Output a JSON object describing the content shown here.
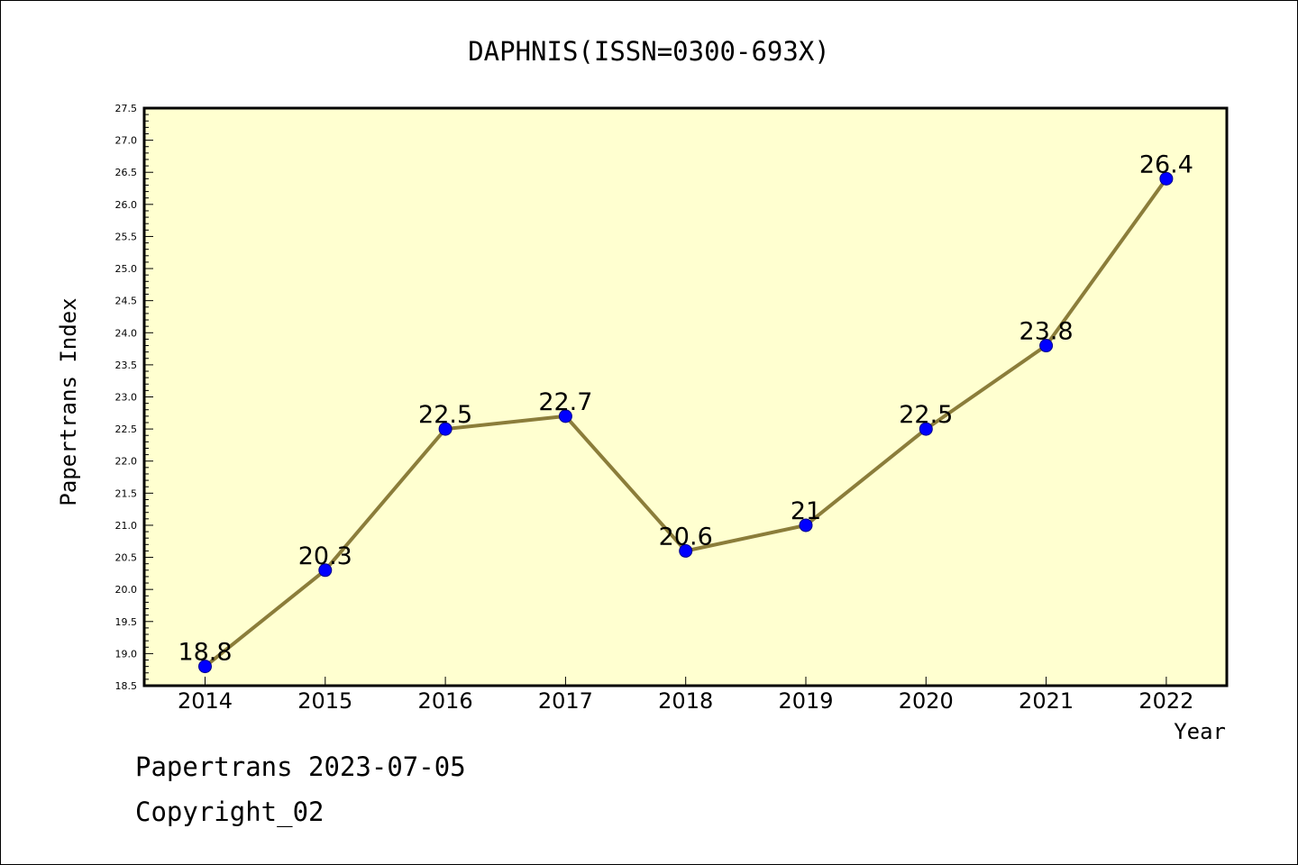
{
  "footer": {
    "line1": "Papertrans 2023-07-05",
    "line2": "Copyright_02"
  },
  "colors": {
    "plot_background": "#ffffd0",
    "line": "#8b7d3a",
    "marker": "#0000ff",
    "text": "#000000"
  },
  "chart_data": {
    "type": "line",
    "title": "DAPHNIS(ISSN=0300-693X)",
    "xlabel": "Year",
    "ylabel": "Papertrans Index",
    "categories": [
      "2014",
      "2015",
      "2016",
      "2017",
      "2018",
      "2019",
      "2020",
      "2021",
      "2022"
    ],
    "values": [
      18.8,
      20.3,
      22.5,
      22.7,
      20.6,
      21,
      22.5,
      23.8,
      26.4
    ],
    "data_labels": [
      "18.8",
      "20.3",
      "22.5",
      "22.7",
      "20.6",
      "21",
      "22.5",
      "23.8",
      "26.4"
    ],
    "ylim": [
      18.5,
      27.5
    ],
    "yticks": [
      "18.5",
      "19.0",
      "19.5",
      "20.0",
      "20.5",
      "21.0",
      "21.5",
      "22.0",
      "22.5",
      "23.0",
      "23.5",
      "24.0",
      "24.5",
      "25.0",
      "25.5",
      "26.0",
      "26.5",
      "27.0",
      "27.5"
    ],
    "grid": false,
    "legend": "none"
  }
}
